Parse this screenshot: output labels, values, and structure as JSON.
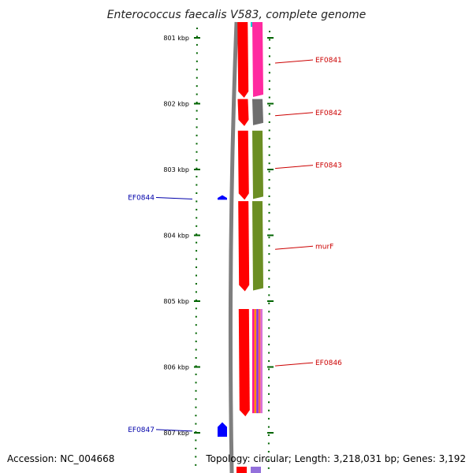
{
  "title": "Enterococcus faecalis V583, complete genome",
  "footer": {
    "accession": "Accession: NC_004668",
    "topology": "Topology: circular; Length: 3,218,031 bp; Genes: 3,192"
  },
  "chart_data": {
    "type": "genome-map",
    "axis_ticks": [
      {
        "value": 801,
        "label": "801 kbp"
      },
      {
        "value": 802,
        "label": "802 kbp"
      },
      {
        "value": 803,
        "label": "803 kbp"
      },
      {
        "value": 804,
        "label": "804 kbp"
      },
      {
        "value": 805,
        "label": "805 kbp"
      },
      {
        "value": 806,
        "label": "806 kbp"
      },
      {
        "value": 807,
        "label": "807 kbp"
      }
    ],
    "genes": [
      {
        "name": "EF0841",
        "strand": "forward",
        "start_kbp": 800.62,
        "end_kbp": 801.91,
        "cog_color": "#ff2aa0",
        "label_color": "#cc0000"
      },
      {
        "name": "EF0842",
        "strand": "forward",
        "start_kbp": 801.93,
        "end_kbp": 802.34,
        "cog_color": "#6e6e6e",
        "label_color": "#cc0000"
      },
      {
        "name": "EF0843",
        "strand": "forward",
        "start_kbp": 802.41,
        "end_kbp": 803.46,
        "cog_color": "#6b8e23",
        "label_color": "#cc0000"
      },
      {
        "name": "EF0844",
        "strand": "reverse",
        "start_kbp": 803.39,
        "end_kbp": 803.46,
        "cog_color": "",
        "label_color": "#0000aa"
      },
      {
        "name": "murF",
        "strand": "forward",
        "start_kbp": 803.48,
        "end_kbp": 804.85,
        "cog_color": "#6b8e23",
        "label_color": "#cc0000"
      },
      {
        "name": "EF0846",
        "strand": "forward",
        "start_kbp": 805.12,
        "end_kbp": 806.75,
        "cog_color": "multi",
        "label_color": "#cc0000"
      },
      {
        "name": "EF0847",
        "strand": "reverse",
        "start_kbp": 806.84,
        "end_kbp": 807.06,
        "cog_color": "",
        "label_color": "#0000aa"
      }
    ],
    "colors": {
      "forward_gene": "#ff0000",
      "reverse_gene": "#0000ff",
      "backbone": "#808080",
      "ticks": "#006400",
      "top_cog_strip": "#00ced1",
      "bottom_cog_strip": "#9370db",
      "multi_cog": [
        "#ff1493",
        "#ff8c00",
        "#8a2be2",
        "#ff6347",
        "#da70d6"
      ]
    }
  }
}
